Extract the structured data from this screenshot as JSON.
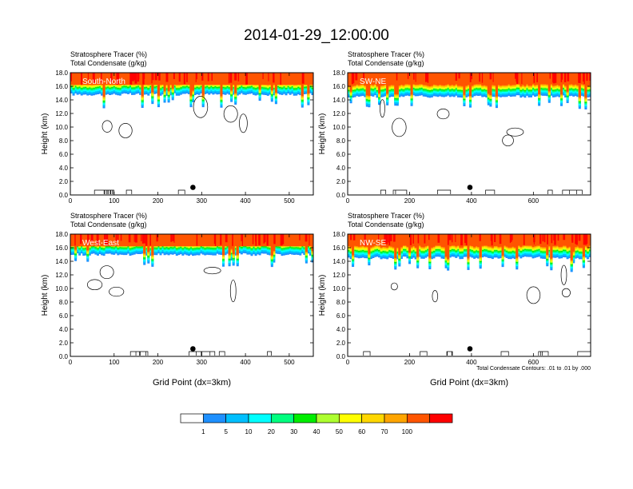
{
  "figure": {
    "title": "2014-01-29_12:00:00",
    "note": "Total Condensate Contours: .01 to .01 by .000"
  },
  "colors": {
    "bins": [
      "#ffffff",
      "#1e90ff",
      "#00bfff",
      "#00ffff",
      "#00ff7f",
      "#00ee00",
      "#adff2f",
      "#ffff00",
      "#ffd700",
      "#ffa500",
      "#ff5500",
      "#ff0000"
    ],
    "contour": "#000000",
    "axis": "#000000"
  },
  "colorbar": {
    "labels": [
      "1",
      "5",
      "10",
      "20",
      "30",
      "40",
      "50",
      "60",
      "70",
      "100"
    ]
  },
  "chart_data": [
    {
      "type": "heatmap",
      "region_label": "South-North",
      "title_line1": "Stratosphere Tracer   (%)",
      "title_line2": "Total Condensate   (g/kg)",
      "ylabel": "Height (km)",
      "xlabel": "",
      "xlim": [
        0,
        555
      ],
      "ylim": [
        0,
        18
      ],
      "xticks": [
        "0",
        "100",
        "200",
        "300",
        "400",
        "500"
      ],
      "xtick_values": [
        0,
        100,
        200,
        300,
        400,
        500
      ],
      "yticks": [
        "0.0",
        "2.0",
        "4.0",
        "6.0",
        "8.0",
        "10.0",
        "12.0",
        "14.0",
        "16.0",
        "18.0"
      ],
      "tracer_base_km": 14.8,
      "red_layer_base_km": 16.2,
      "marker": {
        "x": 280,
        "y": 1.0
      }
    },
    {
      "type": "heatmap",
      "region_label": "SW-NE",
      "title_line1": "Stratosphere Tracer   (%)",
      "title_line2": "Total Condensate   (g/kg)",
      "ylabel": "Height (km)",
      "xlabel": "",
      "xlim": [
        0,
        785
      ],
      "ylim": [
        0,
        18
      ],
      "xticks": [
        "0",
        "200",
        "400",
        "600"
      ],
      "xtick_values": [
        0,
        200,
        400,
        600
      ],
      "yticks": [
        "0.0",
        "2.0",
        "4.0",
        "6.0",
        "8.0",
        "10.0",
        "12.0",
        "14.0",
        "16.0",
        "18.0"
      ],
      "tracer_base_km": 14.5,
      "red_layer_base_km": 16.3,
      "marker": {
        "x": 395,
        "y": 1.0
      }
    },
    {
      "type": "heatmap",
      "region_label": "West-East",
      "title_line1": "Stratosphere Tracer   (%)",
      "title_line2": "Total Condensate   (g/kg)",
      "ylabel": "Height (km)",
      "xlabel": "Grid Point (dx=3km)",
      "xlim": [
        0,
        555
      ],
      "ylim": [
        0,
        18
      ],
      "xticks": [
        "0",
        "100",
        "200",
        "300",
        "400",
        "500"
      ],
      "xtick_values": [
        0,
        100,
        200,
        300,
        400,
        500
      ],
      "yticks": [
        "0.0",
        "2.0",
        "4.0",
        "6.0",
        "8.0",
        "10.0",
        "12.0",
        "14.0",
        "16.0",
        "18.0"
      ],
      "tracer_base_km": 15.0,
      "red_layer_base_km": 16.2,
      "marker": {
        "x": 280,
        "y": 1.0
      }
    },
    {
      "type": "heatmap",
      "region_label": "NW-SE",
      "title_line1": "Stratosphere Tracer   (%)",
      "title_line2": "Total Condensate   (g/kg)",
      "ylabel": "Height (km)",
      "xlabel": "Grid Point (dx=3km)",
      "xlim": [
        0,
        785
      ],
      "ylim": [
        0,
        18
      ],
      "xticks": [
        "0",
        "200",
        "400",
        "600"
      ],
      "xtick_values": [
        0,
        200,
        400,
        600
      ],
      "yticks": [
        "0.0",
        "2.0",
        "4.0",
        "6.0",
        "8.0",
        "10.0",
        "12.0",
        "14.0",
        "16.0",
        "18.0"
      ],
      "tracer_base_km": 14.5,
      "red_layer_base_km": 16.3,
      "marker": {
        "x": 395,
        "y": 1.0
      }
    }
  ]
}
